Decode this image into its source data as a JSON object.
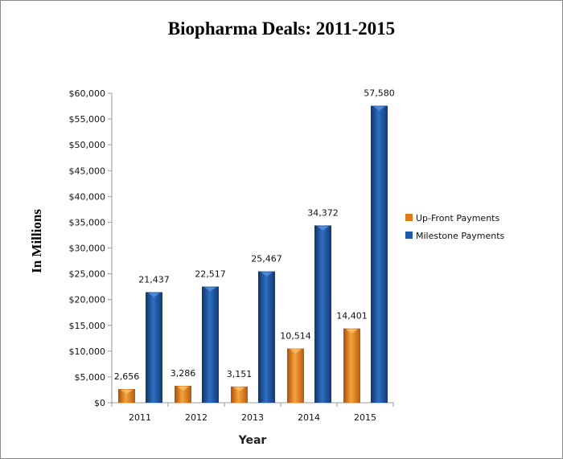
{
  "chart_data": {
    "type": "bar",
    "title": "Biopharma Deals: 2011-2015",
    "xlabel": "Year",
    "ylabel": "In Millions",
    "categories": [
      "2011",
      "2012",
      "2013",
      "2014",
      "2015"
    ],
    "series": [
      {
        "name": "Up-Front Payments",
        "color": "#e07b1a",
        "values": [
          2656,
          3286,
          3151,
          10514,
          14401
        ],
        "labels": [
          "2,656",
          "3,286",
          "3,151",
          "10,514",
          "14,401"
        ]
      },
      {
        "name": "Milestone Payments",
        "color": "#1f5aa6",
        "values": [
          21437,
          22517,
          25467,
          34372,
          57580
        ],
        "labels": [
          "21,437",
          "22,517",
          "25,467",
          "34,372",
          "57,580"
        ]
      }
    ],
    "ylim": [
      0,
      60000
    ],
    "yticks": [
      0,
      5000,
      10000,
      15000,
      20000,
      25000,
      30000,
      35000,
      40000,
      45000,
      50000,
      55000,
      60000
    ],
    "ytick_labels": [
      "$0",
      "$5,000",
      "$10,000",
      "$15,000",
      "$20,000",
      "$25,000",
      "$30,000",
      "$35,000",
      "$40,000",
      "$45,000",
      "$50,000",
      "$55,000",
      "$60,000"
    ],
    "grid": false,
    "legend": "right"
  }
}
